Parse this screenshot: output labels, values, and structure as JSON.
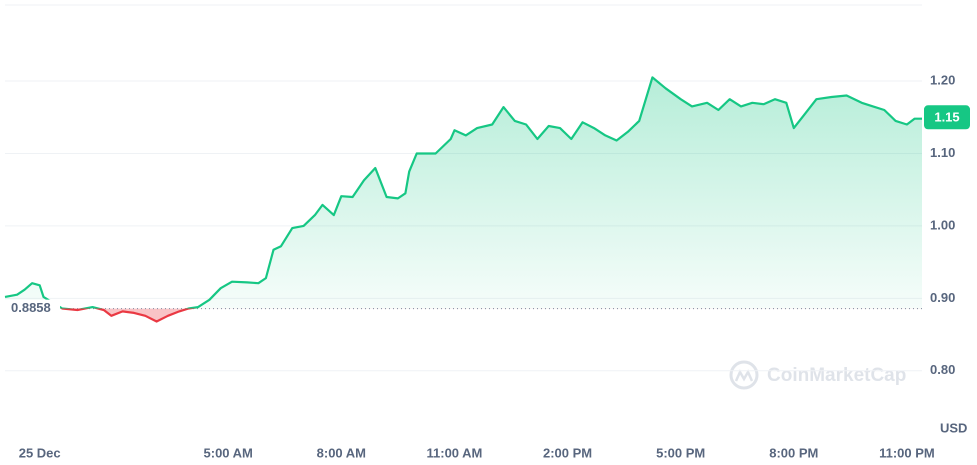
{
  "chart_data": {
    "type": "line",
    "x": [
      -0.92,
      -0.6,
      -0.4,
      -0.2,
      0,
      0.1,
      0.6,
      1.0,
      1.4,
      1.7,
      1.9,
      2.2,
      2.5,
      2.8,
      3.1,
      3.4,
      3.7,
      3.95,
      4.2,
      4.5,
      4.8,
      5.1,
      5.5,
      5.8,
      6.0,
      6.2,
      6.4,
      6.7,
      7.0,
      7.3,
      7.5,
      7.8,
      8.0,
      8.3,
      8.6,
      8.9,
      9.2,
      9.5,
      9.7,
      9.8,
      10.0,
      10.5,
      10.9,
      11.0,
      11.3,
      11.6,
      12.0,
      12.3,
      12.6,
      12.9,
      13.2,
      13.5,
      13.8,
      14.1,
      14.4,
      14.7,
      15.0,
      15.3,
      15.6,
      15.9,
      16.25,
      16.6,
      17.0,
      17.3,
      17.7,
      18.0,
      18.3,
      18.6,
      18.9,
      19.2,
      19.5,
      19.8,
      20.0,
      20.3,
      20.6,
      21.0,
      21.4,
      21.8,
      22.1,
      22.4,
      22.7,
      23.0,
      23.2,
      23.4
    ],
    "values": [
      0.902,
      0.905,
      0.912,
      0.921,
      0.918,
      0.902,
      0.886,
      0.884,
      0.888,
      0.884,
      0.876,
      0.882,
      0.88,
      0.876,
      0.868,
      0.876,
      0.882,
      0.886,
      0.888,
      0.898,
      0.914,
      0.923,
      0.922,
      0.921,
      0.928,
      0.967,
      0.972,
      0.997,
      1.0,
      1.015,
      1.029,
      1.015,
      1.041,
      1.04,
      1.063,
      1.08,
      1.04,
      1.038,
      1.045,
      1.075,
      1.1,
      1.1,
      1.12,
      1.132,
      1.125,
      1.135,
      1.14,
      1.164,
      1.145,
      1.14,
      1.12,
      1.138,
      1.135,
      1.12,
      1.143,
      1.135,
      1.125,
      1.118,
      1.13,
      1.145,
      1.205,
      1.19,
      1.175,
      1.165,
      1.17,
      1.16,
      1.175,
      1.165,
      1.17,
      1.168,
      1.175,
      1.17,
      1.135,
      1.155,
      1.175,
      1.178,
      1.18,
      1.17,
      1.165,
      1.16,
      1.145,
      1.14,
      1.148,
      1.148
    ],
    "color": "#16c784",
    "negative_color": "#ea3943",
    "baseline": 0.8858,
    "current_price": 1.15,
    "xlim": [
      -0.92,
      23.4
    ],
    "xticks": [
      {
        "value": 0,
        "label": "25 Dec"
      },
      {
        "value": 5,
        "label": "5:00 AM"
      },
      {
        "value": 8,
        "label": "8:00 AM"
      },
      {
        "value": 11,
        "label": "11:00 AM"
      },
      {
        "value": 14,
        "label": "2:00 PM"
      },
      {
        "value": 17,
        "label": "5:00 PM"
      },
      {
        "value": 20,
        "label": "8:00 PM"
      },
      {
        "value": 23,
        "label": "11:00 PM"
      }
    ],
    "ylim": [
      0.71,
      1.305
    ],
    "yticks": [
      {
        "value": 0.8,
        "label": "0.80"
      },
      {
        "value": 0.9,
        "label": "0.90"
      },
      {
        "value": 1.0,
        "label": "1.00"
      },
      {
        "value": 1.1,
        "label": "1.10"
      },
      {
        "value": 1.2,
        "label": "1.20"
      }
    ],
    "y_label": "USD",
    "watermark": "CoinMarketCap",
    "grid": true
  }
}
